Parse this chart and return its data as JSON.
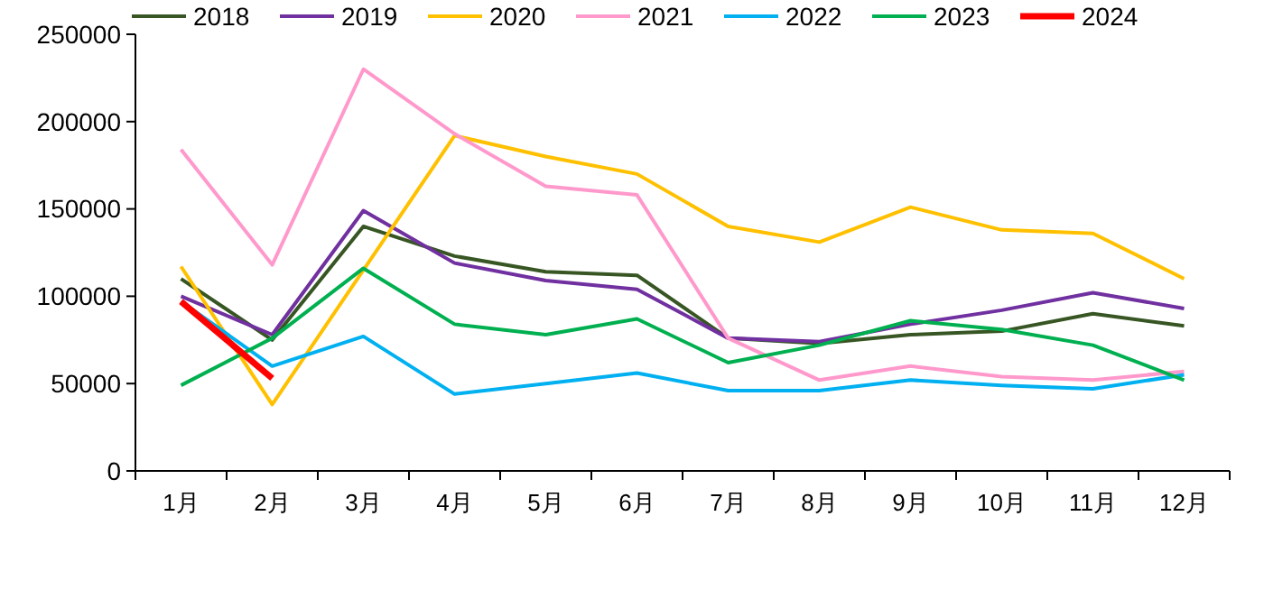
{
  "chart_data": {
    "type": "line",
    "categories": [
      "1月",
      "2月",
      "3月",
      "4月",
      "5月",
      "6月",
      "7月",
      "8月",
      "9月",
      "10月",
      "11月",
      "12月"
    ],
    "ylim": [
      0,
      250000
    ],
    "yticks": [
      0,
      50000,
      100000,
      150000,
      200000,
      250000
    ],
    "grid": false,
    "legend": "top",
    "marker": "none",
    "line_style": "solid",
    "series": [
      {
        "name": "2018",
        "color": "#375623",
        "values": [
          110000,
          75000,
          140000,
          123000,
          114000,
          112000,
          76000,
          73000,
          78000,
          80000,
          90000,
          83000
        ]
      },
      {
        "name": "2019",
        "color": "#7030a0",
        "values": [
          100000,
          78000,
          149000,
          119000,
          109000,
          104000,
          76000,
          74000,
          84000,
          92000,
          102000,
          93000
        ]
      },
      {
        "name": "2020",
        "color": "#ffc000",
        "values": [
          117000,
          38000,
          115000,
          192000,
          180000,
          170000,
          140000,
          131000,
          151000,
          138000,
          136000,
          110000
        ]
      },
      {
        "name": "2021",
        "color": "#ff99cc",
        "values": [
          184000,
          118000,
          230000,
          193000,
          163000,
          158000,
          76000,
          52000,
          60000,
          54000,
          52000,
          57000
        ]
      },
      {
        "name": "2022",
        "color": "#00b0f0",
        "values": [
          97000,
          60000,
          77000,
          44000,
          50000,
          56000,
          46000,
          46000,
          52000,
          49000,
          47000,
          55000
        ]
      },
      {
        "name": "2023",
        "color": "#00b050",
        "values": [
          49000,
          76000,
          116000,
          84000,
          78000,
          87000,
          62000,
          72000,
          86000,
          81000,
          72000,
          52000
        ]
      },
      {
        "name": "2024",
        "color": "#ff0000",
        "values": [
          97000,
          53000,
          null,
          null,
          null,
          null,
          null,
          null,
          null,
          null,
          null,
          null
        ]
      }
    ]
  }
}
